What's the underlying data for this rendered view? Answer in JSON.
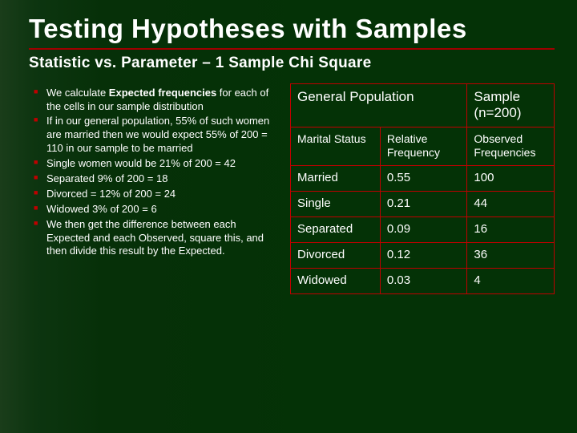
{
  "slide": {
    "title": "Testing Hypotheses with Samples",
    "subtitle": "Statistic vs. Parameter – 1 Sample Chi Square"
  },
  "bullets": {
    "items": [
      {
        "prefix": "We calculate ",
        "bold": "Expected frequencies",
        "suffix": " for each of the cells in our sample distribution"
      },
      {
        "text": "If in our general population, 55% of such women are married then we would expect 55% of 200 = 110 in our sample to be married"
      },
      {
        "text": "Single women would be 21% of 200 = 42"
      },
      {
        "text": "Separated 9% of 200 = 18"
      },
      {
        "text": "Divorced = 12% of 200 = 24"
      },
      {
        "text": "Widowed 3% of 200 = 6"
      },
      {
        "text": "We then get the difference between each Expected and each Observed, square this, and then divide this result by the Expected."
      }
    ]
  },
  "table": {
    "header": {
      "col_a": "General Population",
      "col_b": "Sample (n=200)"
    },
    "subheader": {
      "c0": "Marital Status",
      "c1": "Relative Frequency",
      "c2": "Observed Frequencies"
    },
    "rows": [
      {
        "status": "Married",
        "freq": "0.55",
        "obs": "100"
      },
      {
        "status": "Single",
        "freq": "0.21",
        "obs": "44"
      },
      {
        "status": "Separated",
        "freq": "0.09",
        "obs": "16"
      },
      {
        "status": "Divorced",
        "freq": "0.12",
        "obs": "36"
      },
      {
        "status": "Widowed",
        "freq": "0.03",
        "obs": "4"
      }
    ]
  },
  "style": {
    "accent_color": "#c00000",
    "divider_color": "#a00000",
    "background_start": "#1a3d1a",
    "background_end": "#043206",
    "text_color": "#ffffff",
    "title_fontsize": 33,
    "subtitle_fontsize": 19,
    "bullet_fontsize": 13,
    "table_header_fontsize": 17,
    "table_cell_fontsize": 15,
    "border_width": 1.5
  }
}
